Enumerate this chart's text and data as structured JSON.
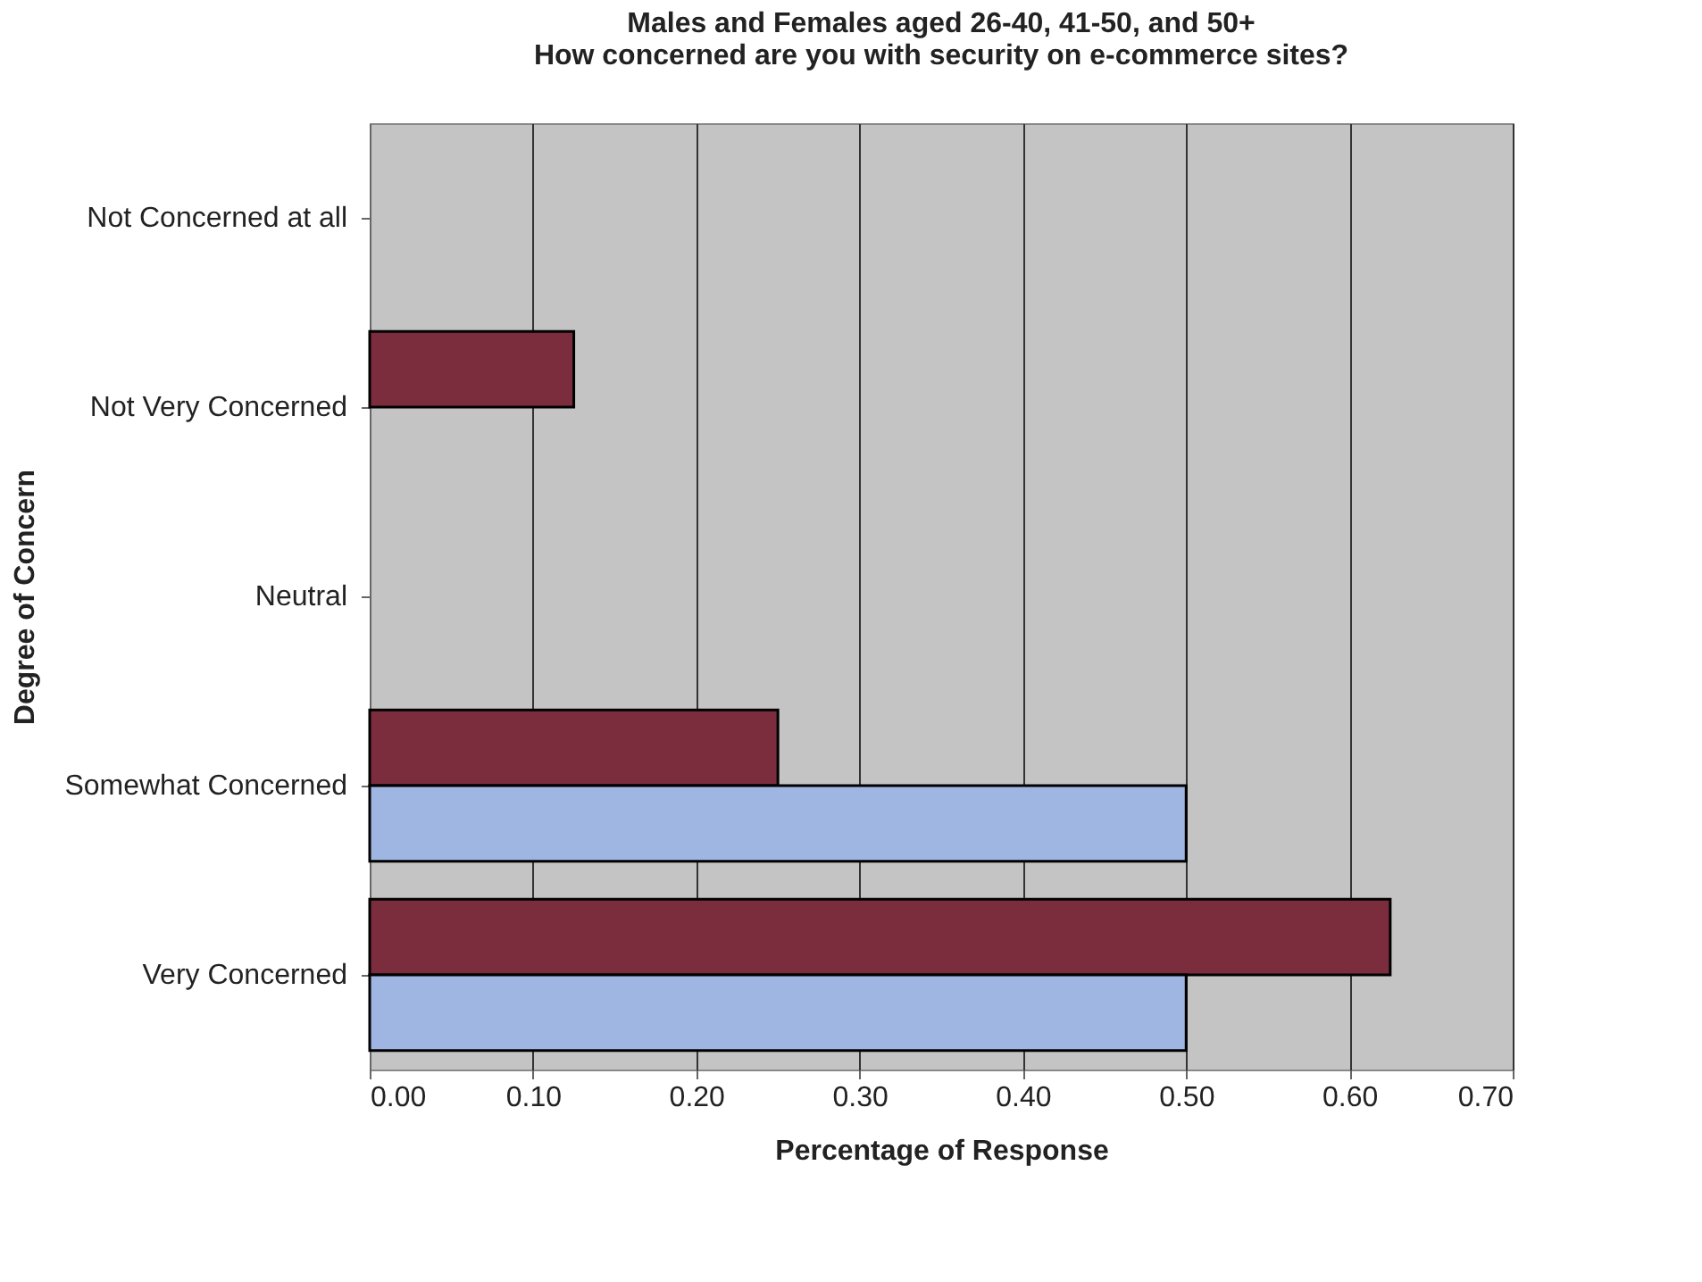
{
  "chart_data": {
    "type": "bar",
    "orientation": "horizontal",
    "title": [
      "Males and Females aged 26-40, 41-50, and 50+",
      "How concerned are you with security on e-commerce sites?"
    ],
    "xlabel": "Percentage of Response",
    "ylabel": "Degree of Concern",
    "categories": [
      "Not Concerned at all",
      "Not Very Concerned",
      "Neutral",
      "Somewhat Concerned",
      "Very Concerned"
    ],
    "series": [
      {
        "color": "#7b2d3e",
        "values": [
          0,
          0.125,
          0,
          0.25,
          0.625
        ]
      },
      {
        "color": "#9fb6e3",
        "values": [
          0,
          0,
          0,
          0.5,
          0.5
        ]
      }
    ],
    "xlim": [
      0,
      0.7
    ],
    "xticks": [
      {
        "value": 0,
        "label": "0.00"
      },
      {
        "value": 0.1,
        "label": "0.10"
      },
      {
        "value": 0.2,
        "label": "0.20"
      },
      {
        "value": 0.3,
        "label": "0.30"
      },
      {
        "value": 0.4,
        "label": "0.40"
      },
      {
        "value": 0.5,
        "label": "0.50"
      },
      {
        "value": 0.6,
        "label": "0.60"
      },
      {
        "value": 0.7,
        "label": "0.70"
      }
    ],
    "grid": "x",
    "legend": false
  }
}
